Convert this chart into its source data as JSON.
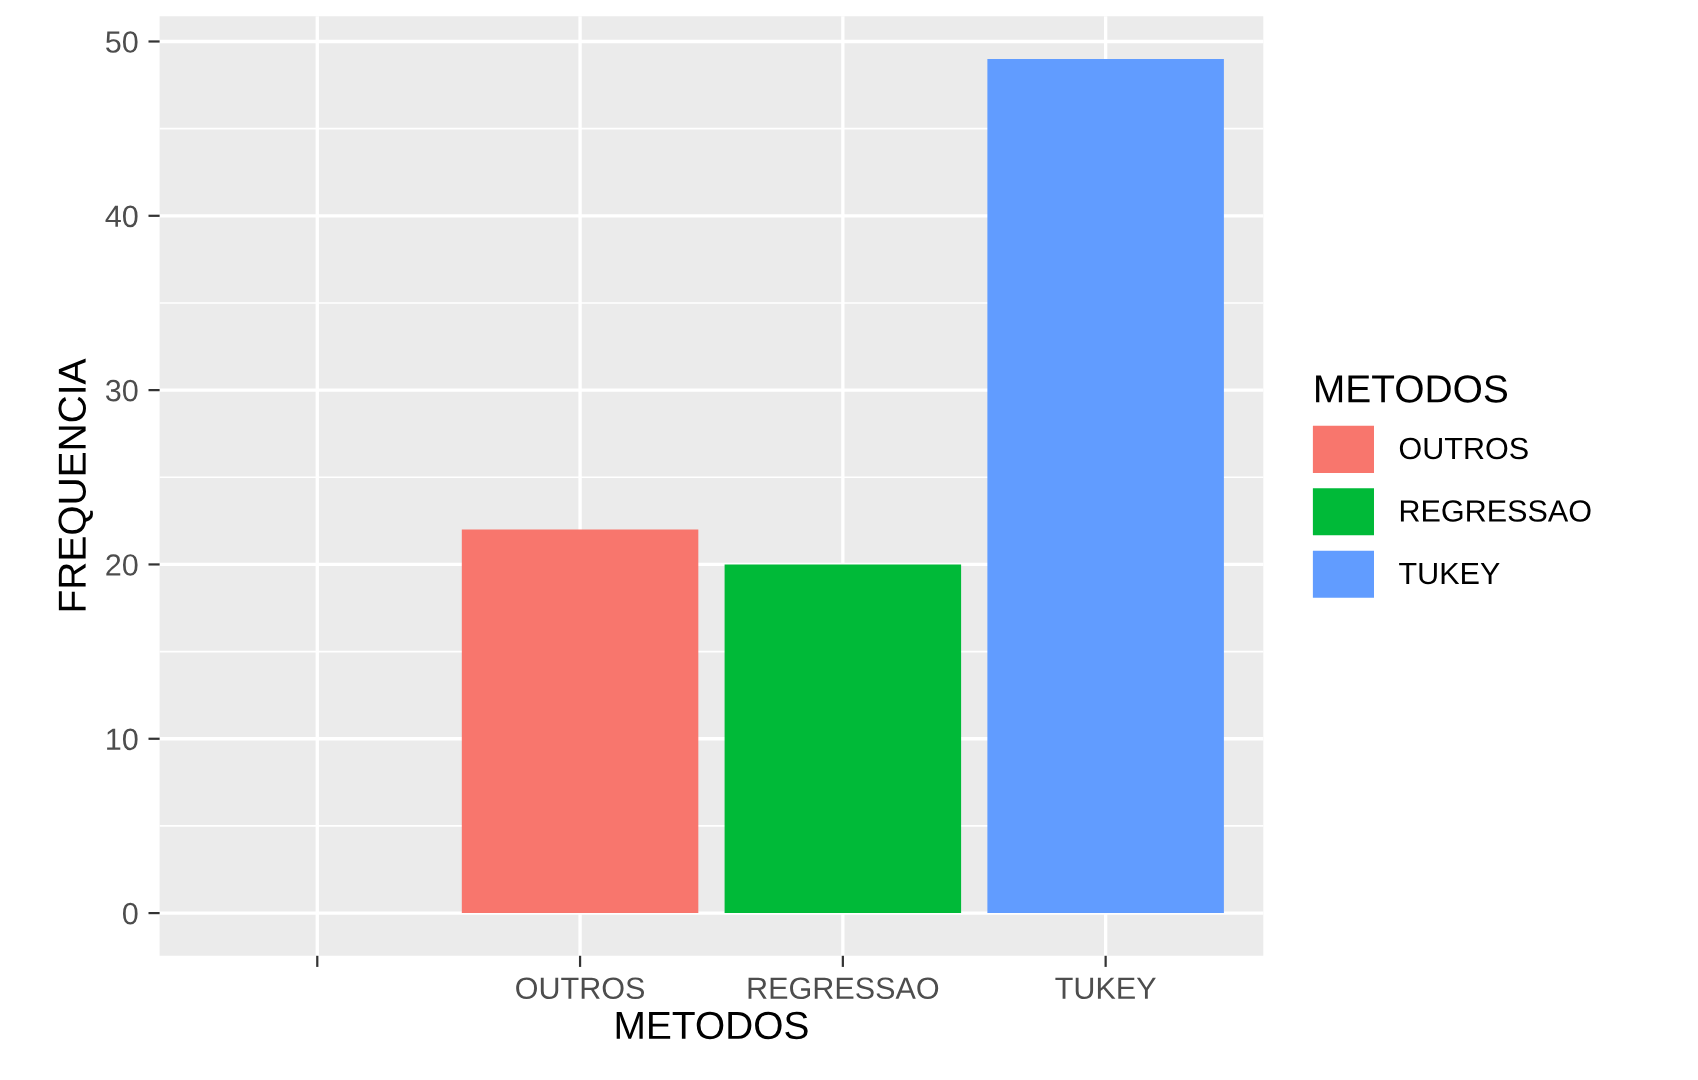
{
  "chart_data": {
    "type": "bar",
    "xlabel": "METODOS",
    "ylabel": "FREQUENCIA",
    "legend_title": "METODOS",
    "categories": [
      null,
      "OUTROS",
      "REGRESSAO",
      "TUKEY"
    ],
    "series": [
      {
        "name": "OUTROS",
        "color": "#f8766d",
        "values": [
          null,
          22,
          null,
          null
        ]
      },
      {
        "name": "REGRESSAO",
        "color": "#00ba38",
        "values": [
          null,
          null,
          20,
          null
        ]
      },
      {
        "name": "TUKEY",
        "color": "#619cff",
        "values": [
          null,
          null,
          null,
          49
        ]
      }
    ],
    "ylim": [
      -2.45,
      51.45
    ],
    "yticks": [
      0,
      10,
      20,
      30,
      40,
      50
    ],
    "grid": true,
    "legend": "right"
  }
}
